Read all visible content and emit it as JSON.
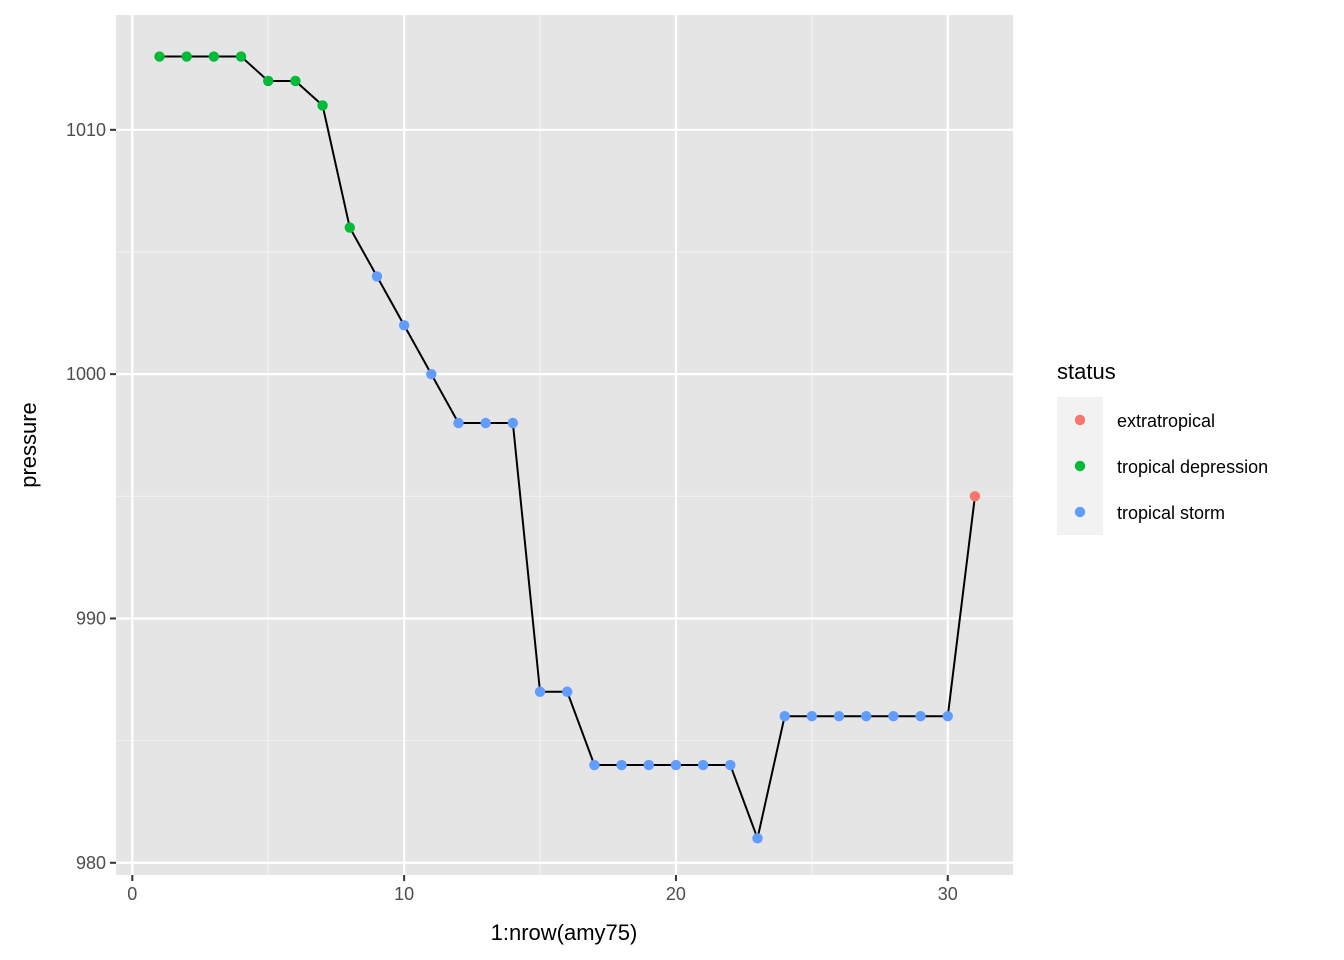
{
  "chart_data": {
    "type": "scatter",
    "xlabel": "1:nrow(amy75)",
    "ylabel": "pressure",
    "xlim": [
      -0.6,
      32.4
    ],
    "ylim": [
      979.5,
      1014.7
    ],
    "x_ticks_major": [
      0,
      10,
      20,
      30
    ],
    "x_ticks_minor": [
      5,
      15,
      25
    ],
    "y_ticks_major": [
      980,
      990,
      1000,
      1010
    ],
    "y_ticks_minor": [
      985,
      995,
      1005
    ],
    "grid": true,
    "line_color": "#000000",
    "legend": {
      "title": "status",
      "position": "right",
      "entries": [
        {
          "label": "extratropical",
          "color": "#F8766D"
        },
        {
          "label": "tropical depression",
          "color": "#00BA38"
        },
        {
          "label": "tropical storm",
          "color": "#619CFF"
        }
      ]
    },
    "x": [
      1,
      2,
      3,
      4,
      5,
      6,
      7,
      8,
      9,
      10,
      11,
      12,
      13,
      14,
      15,
      16,
      17,
      18,
      19,
      20,
      21,
      22,
      23,
      24,
      25,
      26,
      27,
      28,
      29,
      30,
      31
    ],
    "y": [
      1013,
      1013,
      1013,
      1013,
      1012,
      1012,
      1011,
      1006,
      1004,
      1002,
      1000,
      998,
      998,
      998,
      987,
      987,
      984,
      984,
      984,
      984,
      984,
      984,
      981,
      986,
      986,
      986,
      986,
      986,
      986,
      986,
      995
    ],
    "status": [
      "tropical depression",
      "tropical depression",
      "tropical depression",
      "tropical depression",
      "tropical depression",
      "tropical depression",
      "tropical depression",
      "tropical depression",
      "tropical storm",
      "tropical storm",
      "tropical storm",
      "tropical storm",
      "tropical storm",
      "tropical storm",
      "tropical storm",
      "tropical storm",
      "tropical storm",
      "tropical storm",
      "tropical storm",
      "tropical storm",
      "tropical storm",
      "tropical storm",
      "tropical storm",
      "tropical storm",
      "tropical storm",
      "tropical storm",
      "tropical storm",
      "tropical storm",
      "tropical storm",
      "tropical storm",
      "extratropical"
    ]
  }
}
